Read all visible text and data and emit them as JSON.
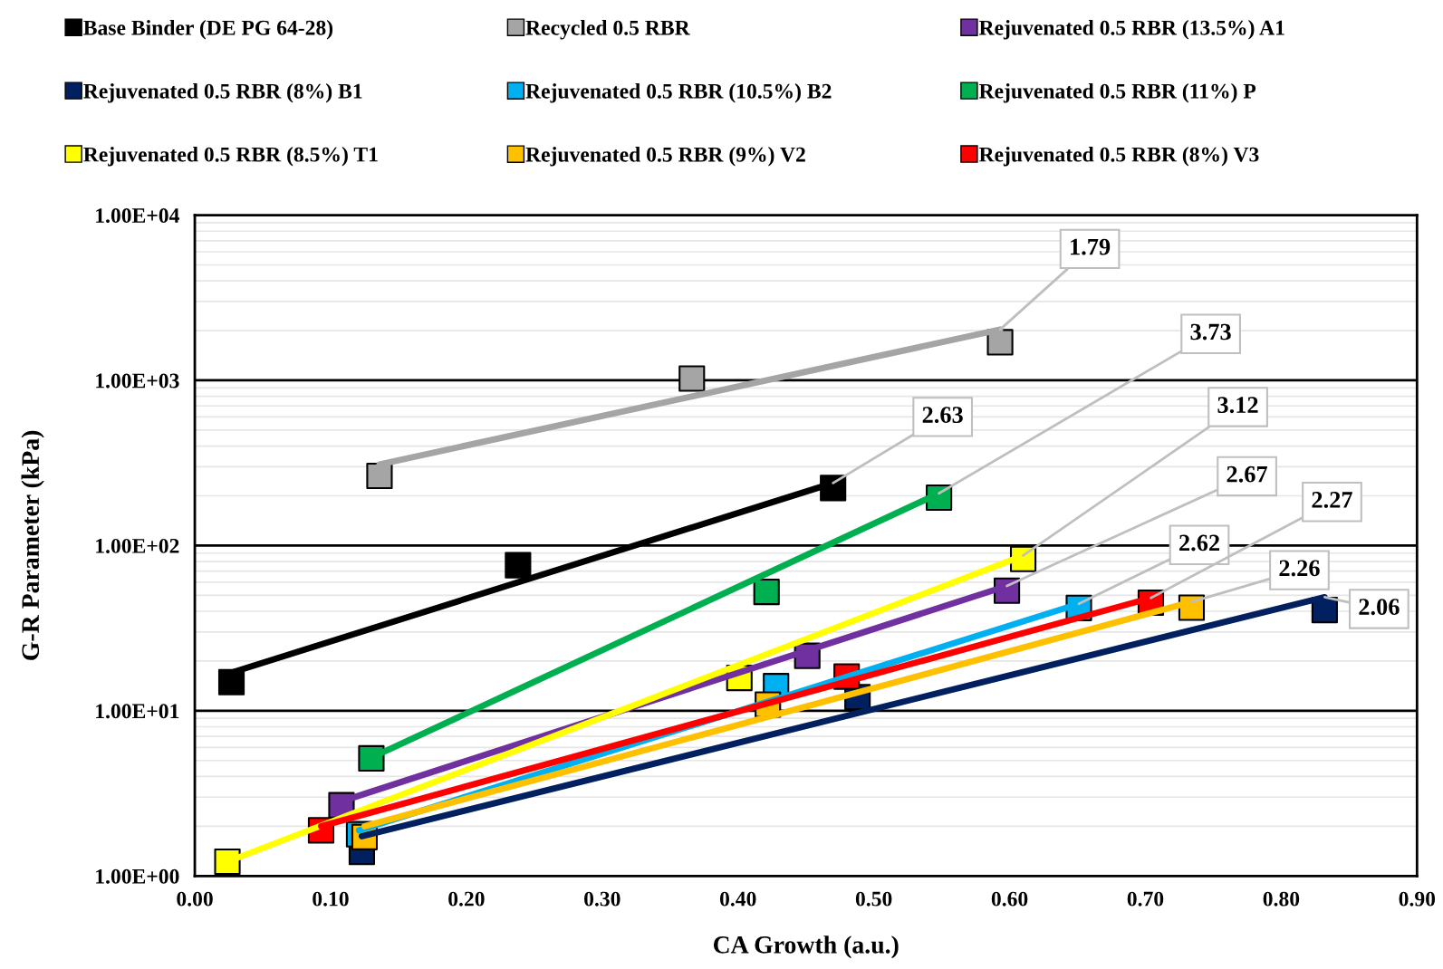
{
  "chart_data": {
    "type": "scatter",
    "xlabel": "CA Growth (a.u.)",
    "ylabel": "G-R Parameter (kPa)",
    "log": "y",
    "xlim": [
      0,
      0.9
    ],
    "ylim": [
      1,
      10000
    ],
    "xticks": [
      {
        "value": 0,
        "label": "0.00"
      },
      {
        "value": 0.1,
        "label": "0.10"
      },
      {
        "value": 0.2,
        "label": "0.20"
      },
      {
        "value": 0.3,
        "label": "0.30"
      },
      {
        "value": 0.4,
        "label": "0.40"
      },
      {
        "value": 0.5,
        "label": "0.50"
      },
      {
        "value": 0.6,
        "label": "0.60"
      },
      {
        "value": 0.7,
        "label": "0.70"
      },
      {
        "value": 0.8,
        "label": "0.80"
      },
      {
        "value": 0.9,
        "label": "0.90"
      }
    ],
    "yticks": [
      {
        "value": 1,
        "label": "1.00E+00"
      },
      {
        "value": 10,
        "label": "1.00E+01"
      },
      {
        "value": 100,
        "label": "1.00E+02"
      },
      {
        "value": 1000,
        "label": "1.00E+03"
      },
      {
        "value": 10000,
        "label": "1.00E+04"
      }
    ],
    "grid": "y",
    "legend": "top",
    "marker": "square",
    "series": [
      {
        "name": "Base Binder (DE PG 64-28)",
        "color": "#000000",
        "x": [
          0.027,
          0.238,
          0.47
        ],
        "values": [
          14.9,
          76,
          223
        ]
      },
      {
        "name": "Recycled 0.5 RBR",
        "color": "#a5a5a5",
        "x": [
          0.136,
          0.366,
          0.593
        ],
        "values": [
          264,
          1025,
          1700
        ]
      },
      {
        "name": "Rejuvenated 0.5 RBR (13.5%) A1",
        "color": "#7030a0",
        "x": [
          0.108,
          0.451,
          0.598
        ],
        "values": [
          2.68,
          21.5,
          53.3
        ]
      },
      {
        "name": "Rejuvenated 0.5 RBR (8%) B1",
        "color": "#002060",
        "x": [
          0.123,
          0.488,
          0.832
        ],
        "values": [
          1.4,
          12.1,
          40.7
        ]
      },
      {
        "name": "Rejuvenated 0.5 RBR (10.5%) B2",
        "color": "#00b0f0",
        "x": [
          0.121,
          0.428,
          0.651
        ],
        "values": [
          1.79,
          14.1,
          41.9
        ]
      },
      {
        "name": "Rejuvenated 0.5 RBR (11%) P",
        "color": "#00b050",
        "x": [
          0.13,
          0.421,
          0.548
        ],
        "values": [
          5.15,
          52.4,
          195
        ]
      },
      {
        "name": "Rejuvenated 0.5 RBR (8.5%) T1",
        "color": "#ffff00",
        "x": [
          0.024,
          0.401,
          0.61
        ],
        "values": [
          1.22,
          15.8,
          83
        ]
      },
      {
        "name": "Rejuvenated 0.5 RBR (9%) V2",
        "color": "#ffc000",
        "x": [
          0.125,
          0.422,
          0.734
        ],
        "values": [
          1.72,
          10.9,
          42.1
        ]
      },
      {
        "name": "Rejuvenated 0.5 RBR (8%) V3",
        "color": "#ff0000",
        "x": [
          0.093,
          0.48,
          0.704
        ],
        "values": [
          1.89,
          16.1,
          45.1
        ]
      },
      {
        "type": "line",
        "marker": "none",
        "color": "#000000",
        "x": [
          0.027,
          0.47
        ],
        "values": [
          17,
          239
        ]
      },
      {
        "type": "line",
        "marker": "none",
        "color": "#a5a5a5",
        "x": [
          0.136,
          0.593
        ],
        "values": [
          310,
          2030
        ]
      },
      {
        "type": "line",
        "marker": "none",
        "color": "#7030a0",
        "x": [
          0.108,
          0.598
        ],
        "values": [
          2.83,
          57
        ]
      },
      {
        "type": "line",
        "marker": "none",
        "color": "#002060",
        "x": [
          0.123,
          0.832
        ],
        "values": [
          1.74,
          48.7
        ]
      },
      {
        "type": "line",
        "marker": "none",
        "color": "#00b0f0",
        "x": [
          0.121,
          0.651
        ],
        "values": [
          1.89,
          44.4
        ]
      },
      {
        "type": "line",
        "marker": "none",
        "color": "#00b050",
        "x": [
          0.13,
          0.548
        ],
        "values": [
          5.2,
          207
        ]
      },
      {
        "type": "line",
        "marker": "none",
        "color": "#ffff00",
        "x": [
          0.024,
          0.61
        ],
        "values": [
          1.22,
          87
        ]
      },
      {
        "type": "line",
        "marker": "none",
        "color": "#ffc000",
        "x": [
          0.125,
          0.734
        ],
        "values": [
          2.0,
          45.6
        ]
      },
      {
        "type": "line",
        "marker": "none",
        "color": "#ff0000",
        "x": [
          0.093,
          0.704
        ],
        "values": [
          2.0,
          48.2
        ]
      }
    ],
    "annotations": [
      {
        "text": "1.79",
        "x": 0.593,
        "y": 2030
      },
      {
        "text": "2.63",
        "x": 0.47,
        "y": 239
      },
      {
        "text": "3.73",
        "x": 0.548,
        "y": 207
      },
      {
        "text": "3.12",
        "x": 0.61,
        "y": 87
      },
      {
        "text": "2.67",
        "x": 0.598,
        "y": 57
      },
      {
        "text": "2.62",
        "x": 0.651,
        "y": 44.4
      },
      {
        "text": "2.27",
        "x": 0.704,
        "y": 48.2
      },
      {
        "text": "2.26",
        "x": 0.734,
        "y": 45.6
      },
      {
        "text": "2.06",
        "x": 0.832,
        "y": 48.7
      }
    ]
  }
}
